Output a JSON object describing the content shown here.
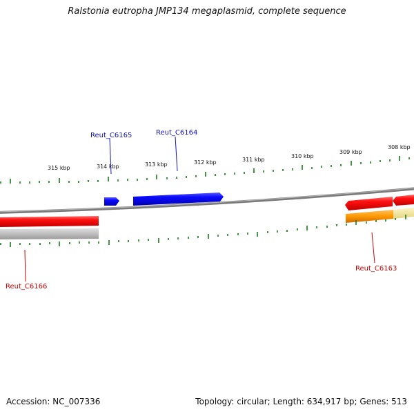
{
  "title": "Ralstonia eutropha JMP134 megaplasmid, complete sequence",
  "footer": {
    "accession": "Accession: NC_007336",
    "summary": "Topology: circular; Length: 634,917 bp; Genes: 513"
  },
  "colors": {
    "tick": "#1a7a1a",
    "backbone": "#8c8c8c",
    "forward_gene": "#0000ee",
    "reverse_gene": "#ee0000",
    "forward_label": "#1010c0",
    "reverse_label": "#cc0000",
    "orange_feature": "#ff9900",
    "grey_feature": "#bdbdbd",
    "pale_feature": "#f2e6a0"
  },
  "scale_labels": [
    "315 kbp",
    "314 kbp",
    "313 kbp",
    "312 kbp",
    "311 kbp",
    "310 kbp",
    "309 kbp",
    "308 kbp"
  ],
  "genes": [
    {
      "name": "Reut_C6165",
      "strand": "forward"
    },
    {
      "name": "Reut_C6164",
      "strand": "forward"
    },
    {
      "name": "Reut_C6166",
      "strand": "reverse"
    },
    {
      "name": "Reut_C6163",
      "strand": "reverse"
    }
  ]
}
